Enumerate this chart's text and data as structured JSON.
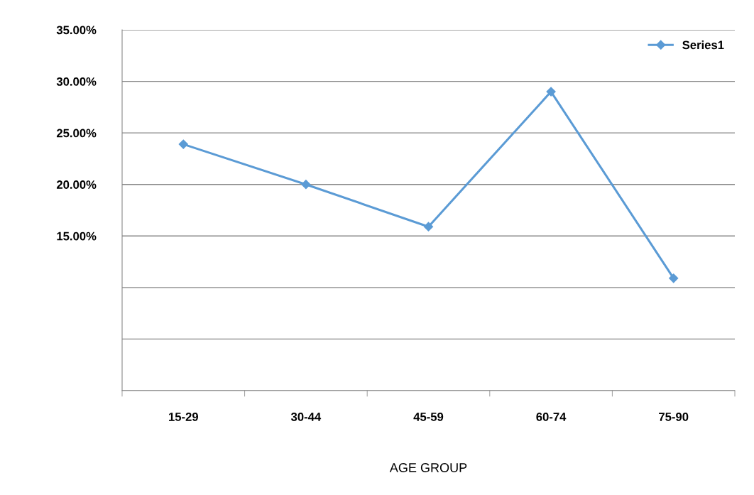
{
  "chart_data": {
    "type": "line",
    "xlabel": "AGE GROUP",
    "categories": [
      "15-29",
      "30-44",
      "45-59",
      "60-74",
      "75-90"
    ],
    "series": [
      {
        "name": "Series1",
        "color": "#5b9bd5",
        "values": [
          23.9,
          20.0,
          15.9,
          29.0,
          10.9
        ]
      }
    ],
    "ylim": [
      0,
      35
    ],
    "yticks": [
      {
        "value": 35,
        "label": "35.00%"
      },
      {
        "value": 30,
        "label": "30.00%"
      },
      {
        "value": 25,
        "label": "25.00%"
      },
      {
        "value": 20,
        "label": "20.00%"
      },
      {
        "value": 15,
        "label": "15.00%"
      },
      {
        "value": 10,
        "label": null
      },
      {
        "value": 5,
        "label": null
      },
      {
        "value": 0,
        "label": null
      }
    ],
    "grid": "y",
    "legend": "top right",
    "marker": "diamond",
    "line_style": "solid"
  }
}
